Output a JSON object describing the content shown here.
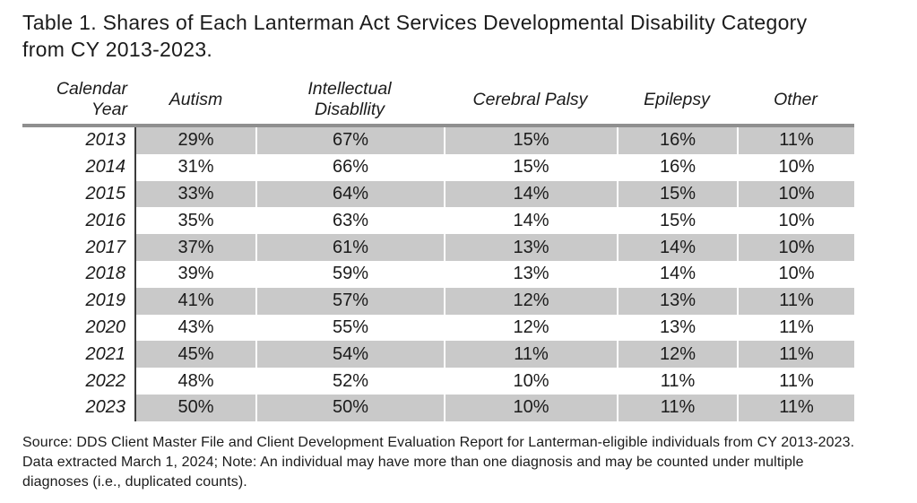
{
  "title": "Table 1. Shares of Each Lanterman Act Services Developmental Disability Category\nfrom CY 2013-2023.",
  "table": {
    "headers": [
      "Calendar\nYear",
      "Autism",
      "Intellectual\nDisabllity",
      "Cerebral Palsy",
      "Epilepsy",
      "Other"
    ],
    "rows": [
      [
        "2013",
        "29%",
        "67%",
        "15%",
        "16%",
        "11%"
      ],
      [
        "2014",
        "31%",
        "66%",
        "15%",
        "16%",
        "10%"
      ],
      [
        "2015",
        "33%",
        "64%",
        "14%",
        "15%",
        "10%"
      ],
      [
        "2016",
        "35%",
        "63%",
        "14%",
        "15%",
        "10%"
      ],
      [
        "2017",
        "37%",
        "61%",
        "13%",
        "14%",
        "10%"
      ],
      [
        "2018",
        "39%",
        "59%",
        "13%",
        "14%",
        "10%"
      ],
      [
        "2019",
        "41%",
        "57%",
        "12%",
        "13%",
        "11%"
      ],
      [
        "2020",
        "43%",
        "55%",
        "12%",
        "13%",
        "11%"
      ],
      [
        "2021",
        "45%",
        "54%",
        "11%",
        "12%",
        "11%"
      ],
      [
        "2022",
        "48%",
        "52%",
        "10%",
        "11%",
        "11%"
      ],
      [
        "2023",
        "50%",
        "50%",
        "10%",
        "11%",
        "11%"
      ]
    ]
  },
  "footnote": "Source: DDS Client Master File and Client Development Evaluation Report for Lanterman-eligible individuals from CY 2013-2023.\nData extracted March 1, 2024; Note: An individual may have more than one diagnosis and may be counted under multiple\ndiagnoses (i.e., duplicated counts).",
  "colors": {
    "row_stripe": "#c9c9c9",
    "header_rule": "#8f8f8f",
    "year_divider": "#3b3b3b",
    "text": "#1b1b1b",
    "background": "#ffffff"
  },
  "chart_data": {
    "type": "table",
    "title": "Table 1. Shares of Each Lanterman Act Services Developmental Disability Category from CY 2013-2023.",
    "columns": [
      "Calendar Year",
      "Autism",
      "Intellectual Disabllity",
      "Cerebral Palsy",
      "Epilepsy",
      "Other"
    ],
    "unit": "%",
    "x": [
      2013,
      2014,
      2015,
      2016,
      2017,
      2018,
      2019,
      2020,
      2021,
      2022,
      2023
    ],
    "series": [
      {
        "name": "Autism",
        "values": [
          29,
          31,
          33,
          35,
          37,
          39,
          41,
          43,
          45,
          48,
          50
        ]
      },
      {
        "name": "Intellectual Disabllity",
        "values": [
          67,
          66,
          64,
          63,
          61,
          59,
          57,
          55,
          54,
          52,
          50
        ]
      },
      {
        "name": "Cerebral Palsy",
        "values": [
          15,
          15,
          14,
          14,
          13,
          13,
          12,
          12,
          11,
          10,
          10
        ]
      },
      {
        "name": "Epilepsy",
        "values": [
          16,
          16,
          15,
          15,
          14,
          14,
          13,
          13,
          12,
          11,
          11
        ]
      },
      {
        "name": "Other",
        "values": [
          11,
          10,
          10,
          10,
          10,
          10,
          11,
          11,
          11,
          11,
          11
        ]
      }
    ]
  }
}
